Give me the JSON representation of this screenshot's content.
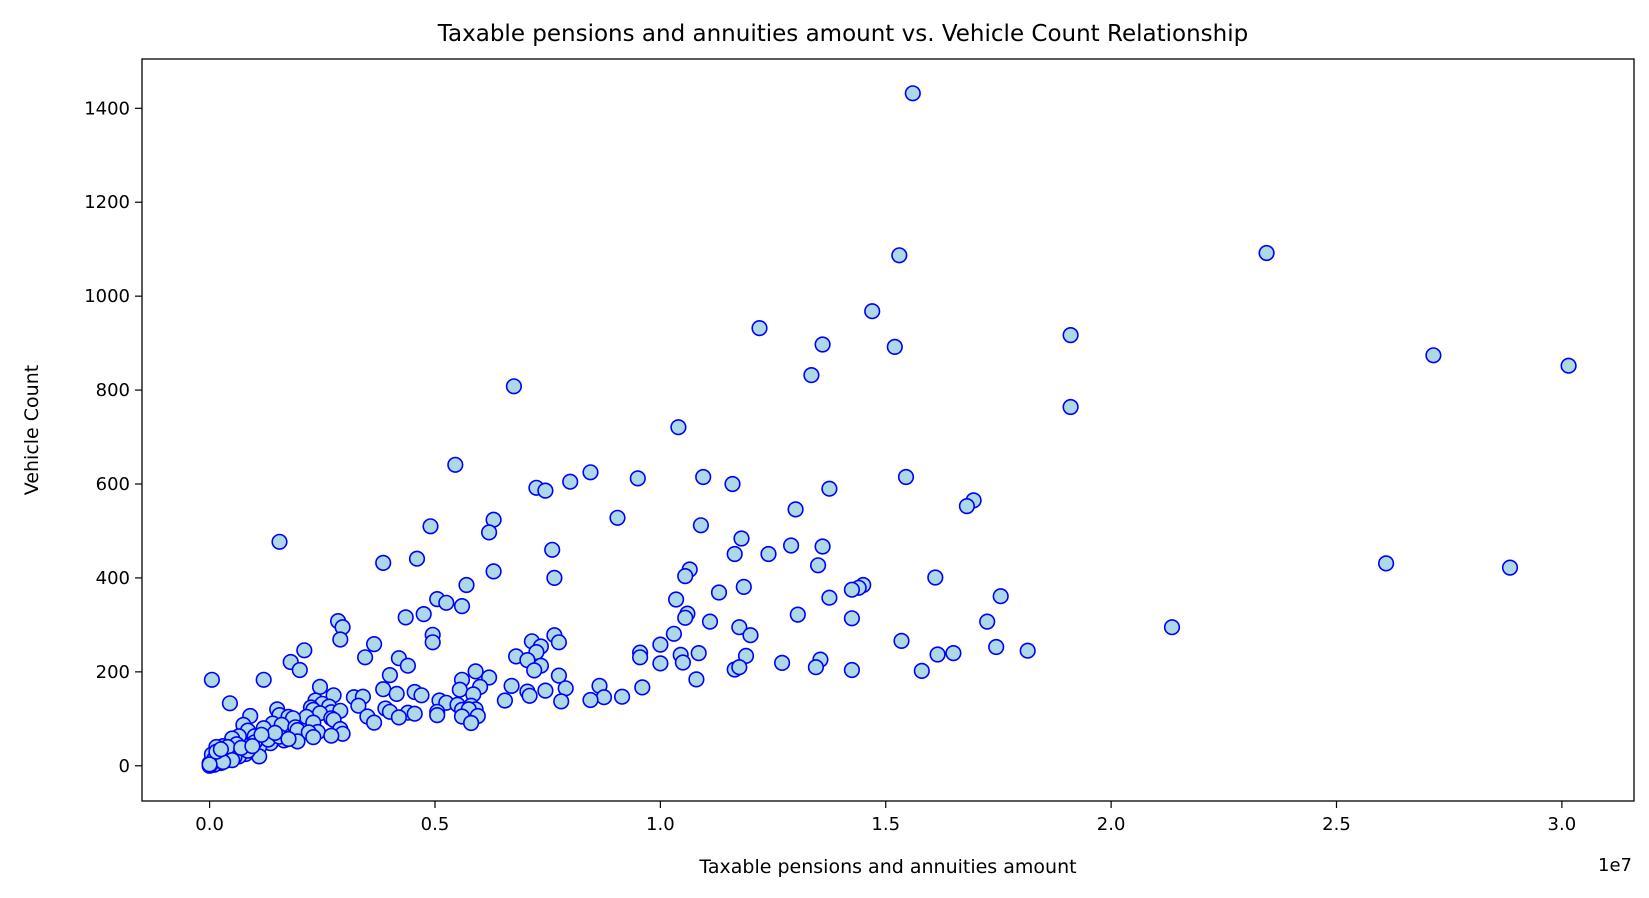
{
  "chart_data": {
    "type": "scatter",
    "title": "Taxable pensions and annuities amount vs. Vehicle Count Relationship",
    "xlabel": "Taxable pensions and annuities amount",
    "ylabel": "Vehicle Count",
    "x_offset_label": "1e7",
    "x_scale": 10000000,
    "xlim": [
      -0.15,
      3.16
    ],
    "ylim": [
      -75,
      1505
    ],
    "x_ticks": [
      0.0,
      0.5,
      1.0,
      1.5,
      2.0,
      2.5,
      3.0
    ],
    "x_tick_labels": [
      "0.0",
      "0.5",
      "1.0",
      "1.5",
      "2.0",
      "2.5",
      "3.0"
    ],
    "y_ticks": [
      0,
      200,
      400,
      600,
      800,
      1000,
      1200,
      1400
    ],
    "y_tick_labels": [
      "0",
      "200",
      "400",
      "600",
      "800",
      "1000",
      "1200",
      "1400"
    ],
    "grid": false,
    "marker_fill": "#add8e6",
    "marker_edge": "#0000ff",
    "points": [
      [
        1.56,
        1432
      ],
      [
        2.345,
        1092
      ],
      [
        1.53,
        1087
      ],
      [
        1.47,
        968
      ],
      [
        1.22,
        932
      ],
      [
        1.91,
        917
      ],
      [
        1.36,
        897
      ],
      [
        1.52,
        892
      ],
      [
        2.715,
        874
      ],
      [
        3.015,
        852
      ],
      [
        1.335,
        832
      ],
      [
        0.675,
        808
      ],
      [
        1.91,
        764
      ],
      [
        1.04,
        721
      ],
      [
        0.545,
        641
      ],
      [
        0.845,
        625
      ],
      [
        1.545,
        615
      ],
      [
        0.95,
        612
      ],
      [
        1.095,
        615
      ],
      [
        1.16,
        600
      ],
      [
        0.8,
        605
      ],
      [
        0.725,
        592
      ],
      [
        0.745,
        586
      ],
      [
        1.375,
        590
      ],
      [
        1.695,
        565
      ],
      [
        1.68,
        553
      ],
      [
        1.3,
        546
      ],
      [
        0.905,
        528
      ],
      [
        0.63,
        524
      ],
      [
        1.09,
        512
      ],
      [
        0.49,
        510
      ],
      [
        0.62,
        497
      ],
      [
        1.18,
        484
      ],
      [
        0.155,
        477
      ],
      [
        1.29,
        469
      ],
      [
        1.36,
        467
      ],
      [
        0.76,
        460
      ],
      [
        1.165,
        451
      ],
      [
        1.24,
        451
      ],
      [
        0.46,
        441
      ],
      [
        0.385,
        432
      ],
      [
        1.35,
        427
      ],
      [
        2.61,
        431
      ],
      [
        2.885,
        422
      ],
      [
        1.065,
        418
      ],
      [
        0.63,
        414
      ],
      [
        1.055,
        404
      ],
      [
        1.61,
        401
      ],
      [
        0.765,
        400
      ],
      [
        0.57,
        385
      ],
      [
        1.45,
        385
      ],
      [
        1.44,
        379
      ],
      [
        1.185,
        381
      ],
      [
        1.425,
        375
      ],
      [
        1.13,
        369
      ],
      [
        0.505,
        355
      ],
      [
        1.035,
        354
      ],
      [
        1.375,
        358
      ],
      [
        1.755,
        361
      ],
      [
        0.525,
        347
      ],
      [
        0.56,
        340
      ],
      [
        1.06,
        324
      ],
      [
        0.475,
        323
      ],
      [
        1.055,
        315
      ],
      [
        1.305,
        322
      ],
      [
        0.435,
        316
      ],
      [
        1.11,
        307
      ],
      [
        1.425,
        314
      ],
      [
        1.725,
        307
      ],
      [
        0.285,
        308
      ],
      [
        2.135,
        295
      ],
      [
        0.295,
        295
      ],
      [
        1.175,
        295
      ],
      [
        1.2,
        278
      ],
      [
        1.03,
        281
      ],
      [
        0.495,
        279
      ],
      [
        0.765,
        278
      ],
      [
        0.29,
        269
      ],
      [
        0.365,
        259
      ],
      [
        0.495,
        263
      ],
      [
        0.715,
        265
      ],
      [
        0.775,
        263
      ],
      [
        1.535,
        266
      ],
      [
        0.735,
        254
      ],
      [
        1.0,
        258
      ],
      [
        0.725,
        242
      ],
      [
        0.21,
        246
      ],
      [
        0.955,
        241
      ],
      [
        1.615,
        237
      ],
      [
        1.745,
        253
      ],
      [
        1.815,
        245
      ],
      [
        1.65,
        240
      ],
      [
        1.045,
        236
      ],
      [
        1.085,
        240
      ],
      [
        0.68,
        233
      ],
      [
        0.345,
        231
      ],
      [
        0.705,
        225
      ],
      [
        0.42,
        229
      ],
      [
        1.19,
        234
      ],
      [
        1.355,
        226
      ],
      [
        0.18,
        221
      ],
      [
        0.735,
        213
      ],
      [
        0.955,
        231
      ],
      [
        1.0,
        218
      ],
      [
        1.05,
        220
      ],
      [
        1.27,
        219
      ],
      [
        0.44,
        213
      ],
      [
        1.345,
        210
      ],
      [
        0.2,
        204
      ],
      [
        0.72,
        203
      ],
      [
        1.165,
        205
      ],
      [
        1.175,
        210
      ],
      [
        1.425,
        204
      ],
      [
        0.59,
        201
      ],
      [
        0.4,
        193
      ],
      [
        0.775,
        192
      ],
      [
        0.12,
        183
      ],
      [
        0.005,
        183
      ],
      [
        0.62,
        188
      ],
      [
        0.56,
        183
      ],
      [
        1.08,
        184
      ],
      [
        1.58,
        202
      ],
      [
        0.245,
        168
      ],
      [
        0.385,
        163
      ],
      [
        0.67,
        170
      ],
      [
        0.865,
        170
      ],
      [
        0.6,
        168
      ],
      [
        0.96,
        167
      ],
      [
        0.705,
        158
      ],
      [
        0.745,
        160
      ],
      [
        0.79,
        165
      ],
      [
        0.555,
        162
      ],
      [
        0.455,
        157
      ],
      [
        0.275,
        150
      ],
      [
        0.585,
        152
      ],
      [
        0.915,
        147
      ],
      [
        0.875,
        146
      ],
      [
        0.32,
        146
      ],
      [
        0.34,
        147
      ],
      [
        0.415,
        153
      ],
      [
        0.045,
        133
      ],
      [
        0.235,
        139
      ],
      [
        0.51,
        139
      ],
      [
        0.25,
        132
      ],
      [
        0.525,
        134
      ],
      [
        0.71,
        149
      ],
      [
        0.78,
        137
      ],
      [
        0.845,
        140
      ],
      [
        0.655,
        139
      ],
      [
        0.39,
        122
      ],
      [
        0.33,
        128
      ],
      [
        0.265,
        126
      ],
      [
        0.47,
        150
      ],
      [
        0.225,
        124
      ],
      [
        0.23,
        119
      ],
      [
        0.55,
        130
      ],
      [
        0.58,
        128
      ],
      [
        0.59,
        120
      ],
      [
        0.15,
        120
      ],
      [
        0.27,
        114
      ],
      [
        0.29,
        117
      ],
      [
        0.4,
        115
      ],
      [
        0.44,
        113
      ],
      [
        0.505,
        115
      ],
      [
        0.56,
        119
      ],
      [
        0.575,
        120
      ],
      [
        0.455,
        111
      ],
      [
        0.245,
        112
      ],
      [
        0.155,
        108
      ],
      [
        0.175,
        104
      ],
      [
        0.215,
        104
      ],
      [
        0.35,
        105
      ],
      [
        0.185,
        101
      ],
      [
        0.27,
        101
      ],
      [
        0.275,
        98
      ],
      [
        0.09,
        106
      ],
      [
        0.42,
        103
      ],
      [
        0.505,
        108
      ],
      [
        0.56,
        105
      ],
      [
        0.595,
        106
      ],
      [
        0.14,
        90
      ],
      [
        0.23,
        92
      ],
      [
        0.16,
        87
      ],
      [
        0.075,
        87
      ],
      [
        0.19,
        82
      ],
      [
        0.365,
        92
      ],
      [
        0.58,
        91
      ],
      [
        0.24,
        72
      ],
      [
        0.12,
        80
      ],
      [
        0.085,
        75
      ],
      [
        0.195,
        76
      ],
      [
        0.29,
        78
      ],
      [
        0.295,
        68
      ],
      [
        0.065,
        63
      ],
      [
        0.1,
        63
      ],
      [
        0.22,
        71
      ],
      [
        0.125,
        58
      ],
      [
        0.23,
        61
      ],
      [
        0.27,
        64
      ],
      [
        0.05,
        58
      ],
      [
        0.165,
        54
      ],
      [
        0.195,
        52
      ],
      [
        0.135,
        48
      ],
      [
        0.09,
        44
      ],
      [
        0.03,
        42
      ],
      [
        0.015,
        40
      ],
      [
        0.11,
        40
      ],
      [
        0.075,
        36
      ],
      [
        0.04,
        34
      ],
      [
        0.02,
        30
      ],
      [
        0.06,
        30
      ],
      [
        0.11,
        20
      ],
      [
        0.045,
        23
      ],
      [
        0.08,
        25
      ],
      [
        0.015,
        22
      ],
      [
        0.065,
        20
      ],
      [
        0.01,
        18
      ],
      [
        0.025,
        15
      ],
      [
        0.04,
        12
      ],
      [
        0.005,
        10
      ],
      [
        0.015,
        8
      ],
      [
        0.025,
        6
      ],
      [
        0.005,
        4
      ],
      [
        0.01,
        2
      ],
      [
        0.0,
        0
      ],
      [
        0.02,
        11
      ],
      [
        0.03,
        26
      ],
      [
        0.055,
        18
      ],
      [
        0.035,
        20
      ],
      [
        0.0,
        5
      ],
      [
        0.005,
        24
      ],
      [
        0.045,
        28
      ],
      [
        0.085,
        32
      ],
      [
        0.1,
        50
      ],
      [
        0.13,
        56
      ],
      [
        0.06,
        46
      ],
      [
        0.155,
        62
      ],
      [
        0.145,
        70
      ],
      [
        0.175,
        57
      ],
      [
        0.115,
        66
      ],
      [
        0.04,
        40
      ],
      [
        0.01,
        14
      ],
      [
        0.02,
        22
      ],
      [
        0.05,
        12
      ],
      [
        0.03,
        8
      ],
      [
        0.0,
        3
      ],
      [
        0.015,
        30
      ],
      [
        0.07,
        38
      ],
      [
        0.095,
        42
      ],
      [
        0.025,
        35
      ]
    ]
  }
}
